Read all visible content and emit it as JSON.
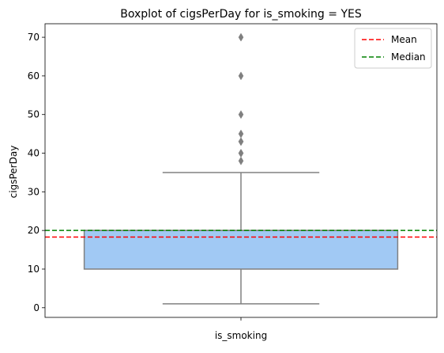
{
  "chart_data": {
    "type": "box",
    "title": "Boxplot of cigsPerDay for is_smoking = YES",
    "xlabel": "",
    "ylabel": "cigsPerDay",
    "categories": [
      "is_smoking"
    ],
    "ylim": [
      -2.5,
      73.5
    ],
    "yticks": [
      0,
      10,
      20,
      30,
      40,
      50,
      60,
      70
    ],
    "box": {
      "whisker_low": 1,
      "q1": 10,
      "median": 20,
      "q3": 20,
      "whisker_high": 35,
      "outliers": [
        38,
        40,
        40,
        43,
        43,
        45,
        50,
        60,
        70
      ],
      "box_color": "#a1c9f4",
      "line_color": "#808080"
    },
    "reference_lines": [
      {
        "name": "Mean",
        "value": 18.3,
        "color": "#ff0000",
        "style": "dashed"
      },
      {
        "name": "Median",
        "value": 20,
        "color": "#008000",
        "style": "dashed"
      }
    ],
    "legend": {
      "position": "top-right"
    },
    "grid": false
  }
}
